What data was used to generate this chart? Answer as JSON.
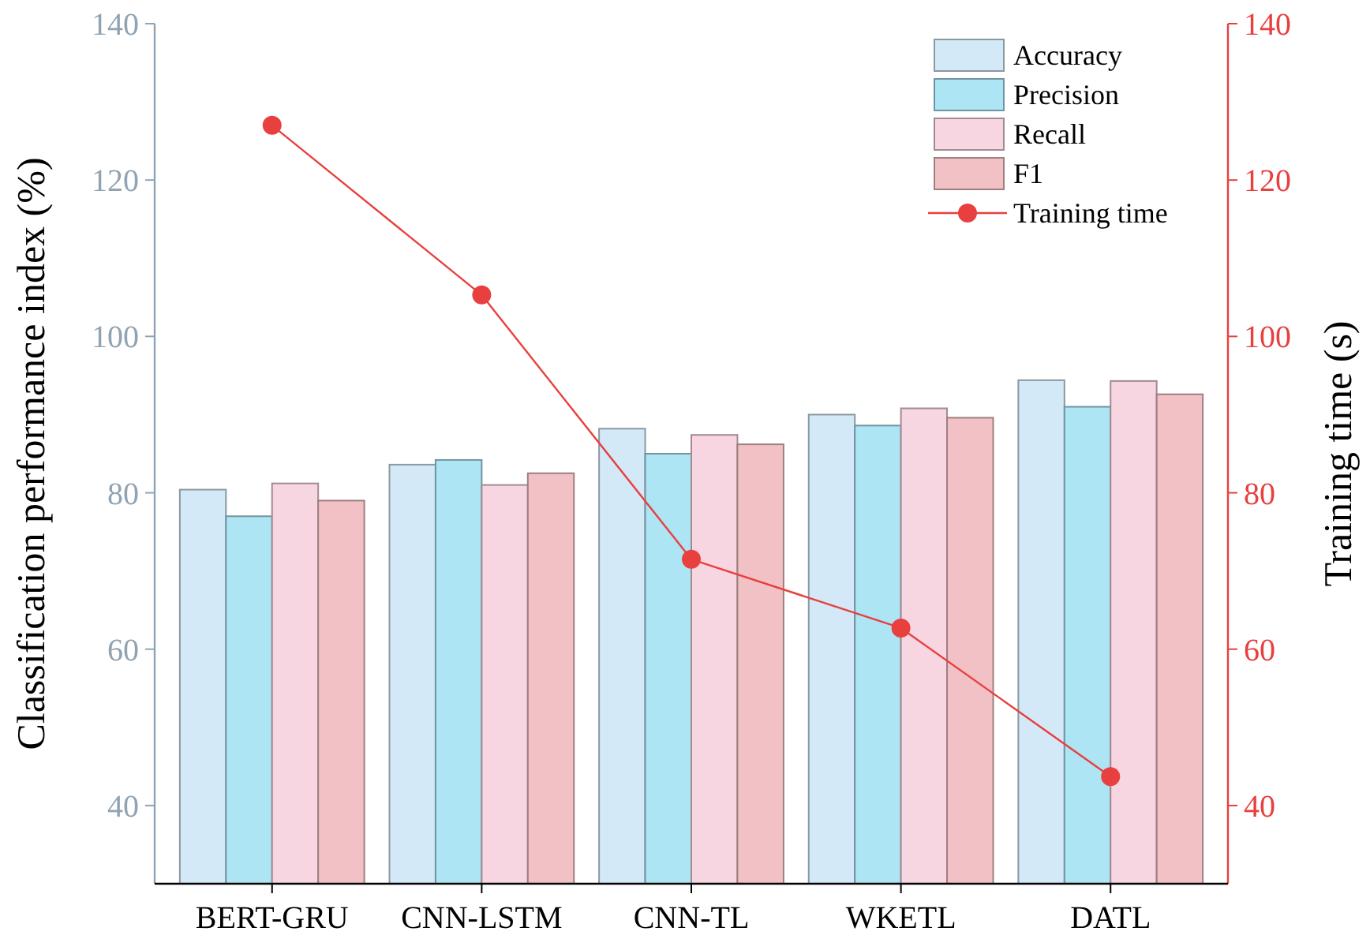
{
  "chart_data": {
    "type": "bar",
    "xlabel": null,
    "ylabel": "Classification performance index (%)",
    "y2label": "Training time (s)",
    "categories": [
      "BERT-GRU",
      "CNN-LSTM",
      "CNN-TL",
      "WKETL",
      "DATL"
    ],
    "series": [
      {
        "name": "Accuracy",
        "color": "#d3e9f7",
        "values": [
          80.4,
          83.6,
          88.2,
          90,
          94.4
        ]
      },
      {
        "name": "Precision",
        "color": "#ade5f5",
        "values": [
          77,
          84.2,
          85,
          88.6,
          91
        ]
      },
      {
        "name": "Recall",
        "color": "#f7d6e2",
        "values": [
          81.2,
          81,
          87.4,
          90.8,
          94.3
        ]
      },
      {
        "name": "F1",
        "color": "#f2c1c5",
        "values": [
          79,
          82.5,
          86.2,
          89.6,
          92.6
        ]
      },
      {
        "name": "Training time",
        "type": "line",
        "axis": "y2",
        "color": "#e8403f",
        "marker": "circle",
        "values": [
          127,
          105.3,
          71.5,
          62.7,
          43.7
        ]
      }
    ],
    "ylim": [
      30,
      140
    ],
    "yticks": [
      40,
      60,
      80,
      100,
      120,
      140
    ],
    "y2lim": [
      30,
      140
    ],
    "y2ticks": [
      40,
      60,
      80,
      100,
      120,
      140
    ],
    "grid": false,
    "legend": "top right"
  }
}
